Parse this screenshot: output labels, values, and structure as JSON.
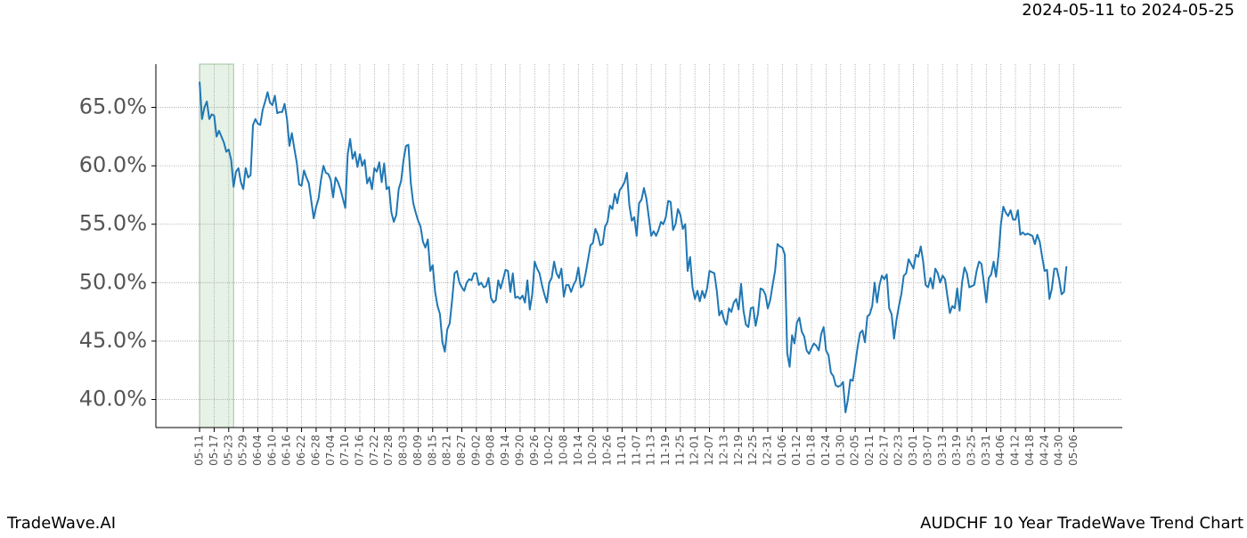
{
  "chart_data": {
    "type": "line",
    "date_range": "2024-05-11 to 2024-05-25",
    "brand": "TradeWave.AI",
    "title": "AUDCHF 10 Year TradeWave Trend Chart",
    "highlight_xlim": [
      0,
      14
    ],
    "highlight_color": "#e6f2e6",
    "grid": true,
    "xlim": [
      -18,
      380
    ],
    "ylim": [
      37.6,
      68.7
    ],
    "yticks": [
      {
        "value": 40,
        "label": "40.0%"
      },
      {
        "value": 45,
        "label": "45.0%"
      },
      {
        "value": 50,
        "label": "50.0%"
      },
      {
        "value": 55,
        "label": "55.0%"
      },
      {
        "value": 60,
        "label": "60.0%"
      },
      {
        "value": 65,
        "label": "65.0%"
      }
    ],
    "xticks": [
      {
        "value": 0,
        "label": "05-11"
      },
      {
        "value": 6,
        "label": "05-17"
      },
      {
        "value": 12,
        "label": "05-23"
      },
      {
        "value": 18,
        "label": "05-29"
      },
      {
        "value": 24,
        "label": "06-04"
      },
      {
        "value": 30,
        "label": "06-10"
      },
      {
        "value": 36,
        "label": "06-16"
      },
      {
        "value": 42,
        "label": "06-22"
      },
      {
        "value": 48,
        "label": "06-28"
      },
      {
        "value": 54,
        "label": "07-04"
      },
      {
        "value": 60,
        "label": "07-10"
      },
      {
        "value": 66,
        "label": "07-16"
      },
      {
        "value": 72,
        "label": "07-22"
      },
      {
        "value": 78,
        "label": "07-28"
      },
      {
        "value": 84,
        "label": "08-03"
      },
      {
        "value": 90,
        "label": "08-09"
      },
      {
        "value": 96,
        "label": "08-15"
      },
      {
        "value": 102,
        "label": "08-21"
      },
      {
        "value": 108,
        "label": "08-27"
      },
      {
        "value": 114,
        "label": "09-02"
      },
      {
        "value": 120,
        "label": "09-08"
      },
      {
        "value": 126,
        "label": "09-14"
      },
      {
        "value": 132,
        "label": "09-20"
      },
      {
        "value": 138,
        "label": "09-26"
      },
      {
        "value": 144,
        "label": "10-02"
      },
      {
        "value": 150,
        "label": "10-08"
      },
      {
        "value": 156,
        "label": "10-14"
      },
      {
        "value": 162,
        "label": "10-20"
      },
      {
        "value": 168,
        "label": "10-26"
      },
      {
        "value": 174,
        "label": "11-01"
      },
      {
        "value": 180,
        "label": "11-07"
      },
      {
        "value": 186,
        "label": "11-13"
      },
      {
        "value": 192,
        "label": "11-19"
      },
      {
        "value": 198,
        "label": "11-25"
      },
      {
        "value": 204,
        "label": "12-01"
      },
      {
        "value": 210,
        "label": "12-07"
      },
      {
        "value": 216,
        "label": "12-13"
      },
      {
        "value": 222,
        "label": "12-19"
      },
      {
        "value": 228,
        "label": "12-25"
      },
      {
        "value": 234,
        "label": "12-31"
      },
      {
        "value": 240,
        "label": "01-06"
      },
      {
        "value": 246,
        "label": "01-12"
      },
      {
        "value": 252,
        "label": "01-18"
      },
      {
        "value": 258,
        "label": "01-24"
      },
      {
        "value": 264,
        "label": "01-30"
      },
      {
        "value": 270,
        "label": "02-05"
      },
      {
        "value": 276,
        "label": "02-11"
      },
      {
        "value": 282,
        "label": "02-17"
      },
      {
        "value": 288,
        "label": "02-23"
      },
      {
        "value": 294,
        "label": "03-01"
      },
      {
        "value": 300,
        "label": "03-07"
      },
      {
        "value": 306,
        "label": "03-13"
      },
      {
        "value": 312,
        "label": "03-19"
      },
      {
        "value": 318,
        "label": "03-25"
      },
      {
        "value": 324,
        "label": "03-31"
      },
      {
        "value": 330,
        "label": "04-06"
      },
      {
        "value": 336,
        "label": "04-12"
      },
      {
        "value": 342,
        "label": "04-18"
      },
      {
        "value": 348,
        "label": "04-24"
      },
      {
        "value": 354,
        "label": "04-30"
      },
      {
        "value": 360,
        "label": "05-06"
      }
    ],
    "x": [
      0,
      1,
      2,
      3,
      4,
      5,
      6,
      7,
      8,
      9,
      10,
      11,
      12,
      13,
      14,
      15,
      16,
      17,
      18,
      19,
      20,
      21,
      22,
      23,
      24,
      25,
      26,
      27,
      28,
      29,
      30,
      31,
      32,
      33,
      34,
      35,
      36,
      37,
      38,
      39,
      40,
      41,
      42,
      43,
      44,
      45,
      46,
      47,
      48,
      49,
      50,
      51,
      52,
      53,
      54,
      55,
      56,
      57,
      58,
      59,
      60,
      61,
      62,
      63,
      64,
      65,
      66,
      67,
      68,
      69,
      70,
      71,
      72,
      73,
      74,
      75,
      76,
      77,
      78,
      79,
      80,
      81,
      82,
      83,
      84,
      85,
      86,
      87,
      88,
      89,
      90,
      91,
      92,
      93,
      94,
      95,
      96,
      97,
      98,
      99,
      100,
      101,
      102,
      103,
      104,
      105,
      106,
      107,
      108,
      109,
      110,
      111,
      112,
      113,
      114,
      115,
      116,
      117,
      118,
      119,
      120,
      121,
      122,
      123,
      124,
      125,
      126,
      127,
      128,
      129,
      130,
      131,
      132,
      133,
      134,
      135,
      136,
      137,
      138,
      139,
      140,
      141,
      142,
      143,
      144,
      145,
      146,
      147,
      148,
      149,
      150,
      151,
      152,
      153,
      154,
      155,
      156,
      157,
      158,
      159,
      160,
      161,
      162,
      163,
      164,
      165,
      166,
      167,
      168,
      169,
      170,
      171,
      172,
      173,
      174,
      175,
      176,
      177,
      178,
      179,
      180,
      181,
      182,
      183,
      184,
      185,
      186,
      187,
      188,
      189,
      190,
      191,
      192,
      193,
      194,
      195,
      196,
      197,
      198,
      199,
      200,
      201,
      202,
      203,
      204,
      205,
      206,
      207,
      208,
      209,
      210,
      211,
      212,
      213,
      214,
      215,
      216,
      217,
      218,
      219,
      220,
      221,
      222,
      223,
      224,
      225,
      226,
      227,
      228,
      229,
      230,
      231,
      232,
      233,
      234,
      235,
      236,
      237,
      238,
      239,
      240,
      241,
      242,
      243,
      244,
      245,
      246,
      247,
      248,
      249,
      250,
      251,
      252,
      253,
      254,
      255,
      256,
      257,
      258,
      259,
      260,
      261,
      262,
      263,
      264,
      265,
      266,
      267,
      268,
      269,
      270,
      271,
      272,
      273,
      274,
      275,
      276,
      277,
      278,
      279,
      280,
      281,
      282,
      283,
      284,
      285,
      286,
      287,
      288,
      289,
      290,
      291,
      292,
      293,
      294,
      295,
      296,
      297,
      298,
      299,
      300,
      301,
      302,
      303,
      304,
      305,
      306,
      307,
      308,
      309,
      310,
      311,
      312,
      313,
      314,
      315,
      316,
      317,
      318,
      319,
      320,
      321,
      322,
      323,
      324,
      325,
      326,
      327,
      328,
      329,
      330,
      331,
      332,
      333,
      334,
      335,
      336,
      337,
      338,
      339,
      340,
      341,
      342,
      343,
      344,
      345,
      346,
      347,
      348,
      349,
      350,
      351,
      352,
      353,
      354,
      355,
      356,
      357
    ],
    "series": [
      {
        "color": "#1f77b4",
        "values": [
          67.2,
          64.0,
          65.0,
          65.5,
          64.0,
          64.4,
          64.3,
          62.5,
          63.0,
          62.5,
          62.0,
          61.2,
          61.4,
          60.5,
          58.2,
          59.5,
          59.8,
          58.6,
          58.0,
          59.8,
          59.0,
          59.2,
          63.5,
          64.0,
          63.6,
          63.5,
          64.8,
          65.5,
          66.3,
          65.4,
          65.2,
          66.0,
          64.5,
          64.6,
          64.6,
          65.3,
          64.0,
          61.7,
          62.8,
          61.5,
          60.3,
          58.4,
          58.3,
          59.6,
          59.0,
          58.5,
          57.0,
          55.5,
          56.5,
          57.2,
          58.8,
          60.0,
          59.4,
          59.3,
          58.8,
          57.3,
          59.0,
          58.6,
          58.0,
          57.2,
          56.4,
          61.0,
          62.3,
          60.6,
          61.2,
          59.9,
          61.0,
          60.0,
          60.5,
          58.5,
          59.0,
          58.0,
          59.8,
          59.5,
          60.3,
          58.6,
          60.2,
          58.0,
          58.2,
          56.0,
          55.2,
          55.8,
          58.0,
          58.7,
          60.5,
          61.7,
          61.8,
          58.5,
          56.8,
          56.0,
          55.3,
          54.8,
          53.5,
          53.0,
          53.7,
          51.0,
          51.5,
          49.2,
          48.0,
          47.3,
          44.9,
          44.1,
          46.0,
          46.5,
          48.5,
          50.8,
          51.0,
          50.0,
          49.6,
          49.3,
          50.0,
          50.3,
          50.2,
          50.8,
          50.8,
          49.8,
          50.0,
          49.6,
          49.7,
          50.4,
          48.7,
          48.3,
          48.5,
          50.2,
          49.5,
          50.3,
          51.1,
          51.0,
          49.2,
          50.8,
          48.7,
          48.8,
          48.6,
          48.9,
          48.3,
          50.2,
          47.7,
          49.0,
          51.8,
          51.2,
          50.8,
          49.8,
          49.0,
          48.3,
          50.0,
          50.4,
          51.8,
          50.8,
          50.4,
          51.2,
          48.8,
          49.8,
          49.8,
          49.2,
          49.8,
          50.2,
          51.3,
          49.6,
          49.8,
          50.8,
          52.0,
          53.2,
          53.4,
          54.6,
          54.1,
          53.2,
          53.3,
          54.8,
          55.2,
          56.6,
          56.3,
          57.6,
          56.8,
          57.9,
          58.2,
          58.6,
          59.4,
          56.6,
          55.3,
          55.6,
          54.0,
          56.8,
          57.1,
          58.1,
          57.2,
          55.6,
          54.0,
          54.4,
          54.0,
          54.5,
          55.2,
          55.0,
          55.6,
          57.0,
          56.9,
          54.5,
          55.0,
          56.3,
          55.8,
          54.6,
          55.0,
          51.0,
          52.2,
          49.6,
          48.6,
          49.3,
          48.4,
          49.3,
          48.7,
          49.5,
          51.0,
          50.9,
          50.8,
          49.3,
          47.2,
          47.6,
          46.8,
          46.4,
          47.8,
          47.5,
          48.3,
          48.6,
          47.7,
          49.9,
          47.6,
          46.4,
          46.2,
          47.8,
          47.9,
          46.3,
          47.4,
          49.5,
          49.4,
          49.0,
          47.8,
          48.5,
          49.8,
          51.0,
          53.3,
          53.1,
          53.0,
          52.4,
          44.0,
          42.8,
          45.5,
          44.8,
          46.6,
          47.0,
          45.8,
          45.4,
          44.2,
          43.9,
          44.4,
          44.8,
          44.6,
          44.2,
          45.6,
          46.2,
          44.2,
          43.8,
          42.3,
          42.0,
          41.2,
          41.1,
          41.2,
          41.5,
          38.9,
          40.0,
          41.7,
          41.6,
          43.0,
          44.5,
          45.7,
          45.9,
          44.9,
          47.1,
          47.3,
          48.0,
          50.0,
          48.3,
          49.8,
          50.6,
          50.3,
          50.7,
          47.8,
          47.3,
          45.2,
          46.8,
          48.0,
          49.0,
          50.6,
          50.8,
          52.0,
          51.6,
          51.2,
          52.4,
          52.2,
          53.1,
          51.8,
          49.8,
          49.6,
          50.4,
          49.5,
          51.2,
          50.8,
          50.0,
          50.6,
          50.3,
          48.8,
          47.4,
          48.0,
          47.8,
          49.5,
          47.6,
          50.0,
          51.3,
          50.8,
          49.6,
          49.7,
          49.8,
          51.0,
          51.8,
          51.6,
          50.0,
          48.3,
          50.4,
          50.7,
          51.8,
          50.5,
          52.3,
          55.0,
          56.5,
          56.0,
          55.7,
          56.2,
          55.4,
          55.4,
          56.2,
          54.1,
          54.3,
          54.1,
          54.2,
          54.1,
          54.0,
          53.3,
          54.1,
          53.5,
          52.2,
          51.0,
          51.1,
          48.6,
          49.5,
          51.2,
          51.2,
          50.3,
          49.0,
          49.2,
          51.4
        ]
      }
    ]
  }
}
